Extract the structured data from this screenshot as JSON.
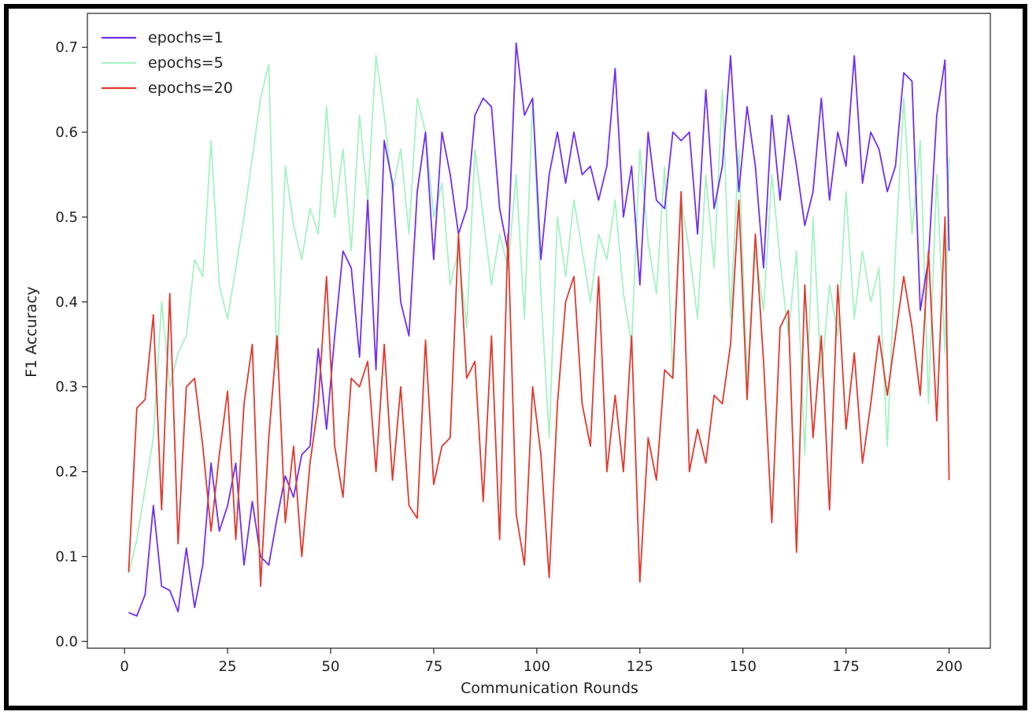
{
  "chart_data": {
    "type": "line",
    "title": "",
    "xlabel": "Communication Rounds",
    "ylabel": "F1 Accuracy",
    "xlim": [
      -9,
      210
    ],
    "ylim": [
      -0.008,
      0.74
    ],
    "xticks": [
      0,
      25,
      50,
      75,
      100,
      125,
      150,
      175,
      200
    ],
    "yticks": [
      0.0,
      0.1,
      0.2,
      0.3,
      0.4,
      0.5,
      0.6,
      0.7
    ],
    "xtick_labels": [
      "0",
      "25",
      "50",
      "75",
      "100",
      "125",
      "150",
      "175",
      "200"
    ],
    "ytick_labels": [
      "0.0",
      "0.1",
      "0.2",
      "0.3",
      "0.4",
      "0.5",
      "0.6",
      "0.7"
    ],
    "grid": false,
    "legend_position": "top-left",
    "series": [
      {
        "name": "epochs=5",
        "color": "#a6f2c4",
        "x": [
          1,
          3,
          5,
          7,
          9,
          11,
          13,
          15,
          17,
          19,
          21,
          23,
          25,
          27,
          29,
          31,
          33,
          35,
          37,
          39,
          41,
          43,
          45,
          47,
          49,
          51,
          53,
          55,
          57,
          59,
          61,
          63,
          65,
          67,
          69,
          71,
          73,
          75,
          77,
          79,
          81,
          83,
          85,
          87,
          89,
          91,
          93,
          95,
          97,
          99,
          101,
          103,
          105,
          107,
          109,
          111,
          113,
          115,
          117,
          119,
          121,
          123,
          125,
          127,
          129,
          131,
          133,
          135,
          137,
          139,
          141,
          143,
          145,
          147,
          149,
          151,
          153,
          155,
          157,
          159,
          161,
          163,
          165,
          167,
          169,
          171,
          173,
          175,
          177,
          179,
          181,
          183,
          185,
          187,
          189,
          191,
          193,
          195,
          197,
          199,
          200
        ],
        "y": [
          0.08,
          0.12,
          0.18,
          0.24,
          0.4,
          0.3,
          0.34,
          0.36,
          0.45,
          0.43,
          0.59,
          0.42,
          0.38,
          0.44,
          0.5,
          0.57,
          0.64,
          0.68,
          0.32,
          0.56,
          0.49,
          0.45,
          0.51,
          0.48,
          0.63,
          0.5,
          0.58,
          0.46,
          0.62,
          0.52,
          0.69,
          0.62,
          0.53,
          0.58,
          0.48,
          0.64,
          0.6,
          0.5,
          0.54,
          0.42,
          0.46,
          0.37,
          0.58,
          0.5,
          0.42,
          0.48,
          0.44,
          0.55,
          0.38,
          0.64,
          0.41,
          0.24,
          0.5,
          0.43,
          0.52,
          0.46,
          0.4,
          0.48,
          0.45,
          0.52,
          0.41,
          0.35,
          0.58,
          0.47,
          0.41,
          0.56,
          0.31,
          0.52,
          0.46,
          0.38,
          0.55,
          0.44,
          0.65,
          0.38,
          0.58,
          0.31,
          0.46,
          0.39,
          0.55,
          0.45,
          0.36,
          0.46,
          0.22,
          0.5,
          0.31,
          0.42,
          0.36,
          0.53,
          0.38,
          0.46,
          0.4,
          0.44,
          0.23,
          0.46,
          0.64,
          0.48,
          0.59,
          0.28,
          0.55,
          0.34,
          0.57
        ]
      },
      {
        "name": "epochs=1",
        "color": "#7030f0",
        "x": [
          1,
          3,
          5,
          7,
          9,
          11,
          13,
          15,
          17,
          19,
          21,
          23,
          25,
          27,
          29,
          31,
          33,
          35,
          37,
          39,
          41,
          43,
          45,
          47,
          49,
          51,
          53,
          55,
          57,
          59,
          61,
          63,
          65,
          67,
          69,
          71,
          73,
          75,
          77,
          79,
          81,
          83,
          85,
          87,
          89,
          91,
          93,
          95,
          97,
          99,
          101,
          103,
          105,
          107,
          109,
          111,
          113,
          115,
          117,
          119,
          121,
          123,
          125,
          127,
          129,
          131,
          133,
          135,
          137,
          139,
          141,
          143,
          145,
          147,
          149,
          151,
          153,
          155,
          157,
          159,
          161,
          163,
          165,
          167,
          169,
          171,
          173,
          175,
          177,
          179,
          181,
          183,
          185,
          187,
          189,
          191,
          193,
          195,
          197,
          199,
          200
        ],
        "y": [
          0.034,
          0.03,
          0.055,
          0.16,
          0.065,
          0.06,
          0.035,
          0.11,
          0.04,
          0.09,
          0.21,
          0.13,
          0.16,
          0.21,
          0.09,
          0.165,
          0.1,
          0.09,
          0.145,
          0.195,
          0.17,
          0.22,
          0.23,
          0.345,
          0.25,
          0.36,
          0.46,
          0.44,
          0.335,
          0.52,
          0.32,
          0.59,
          0.54,
          0.4,
          0.36,
          0.53,
          0.6,
          0.45,
          0.6,
          0.55,
          0.48,
          0.51,
          0.62,
          0.64,
          0.63,
          0.51,
          0.46,
          0.705,
          0.62,
          0.64,
          0.45,
          0.55,
          0.6,
          0.54,
          0.6,
          0.55,
          0.56,
          0.52,
          0.56,
          0.675,
          0.5,
          0.56,
          0.42,
          0.6,
          0.52,
          0.51,
          0.6,
          0.59,
          0.6,
          0.48,
          0.65,
          0.51,
          0.56,
          0.69,
          0.53,
          0.63,
          0.56,
          0.44,
          0.62,
          0.52,
          0.62,
          0.56,
          0.49,
          0.53,
          0.64,
          0.52,
          0.6,
          0.56,
          0.69,
          0.54,
          0.6,
          0.58,
          0.53,
          0.56,
          0.67,
          0.66,
          0.39,
          0.45,
          0.62,
          0.685,
          0.46
        ]
      },
      {
        "name": "epochs=20",
        "color": "#e03a30",
        "x": [
          1,
          3,
          5,
          7,
          9,
          11,
          13,
          15,
          17,
          19,
          21,
          23,
          25,
          27,
          29,
          31,
          33,
          35,
          37,
          39,
          41,
          43,
          45,
          47,
          49,
          51,
          53,
          55,
          57,
          59,
          61,
          63,
          65,
          67,
          69,
          71,
          73,
          75,
          77,
          79,
          81,
          83,
          85,
          87,
          89,
          91,
          93,
          95,
          97,
          99,
          101,
          103,
          105,
          107,
          109,
          111,
          113,
          115,
          117,
          119,
          121,
          123,
          125,
          127,
          129,
          131,
          133,
          135,
          137,
          139,
          141,
          143,
          145,
          147,
          149,
          151,
          153,
          155,
          157,
          159,
          161,
          163,
          165,
          167,
          169,
          171,
          173,
          175,
          177,
          179,
          181,
          183,
          185,
          187,
          189,
          191,
          193,
          195,
          197,
          199,
          200
        ],
        "y": [
          0.082,
          0.275,
          0.285,
          0.385,
          0.155,
          0.41,
          0.115,
          0.3,
          0.31,
          0.23,
          0.13,
          0.22,
          0.295,
          0.12,
          0.28,
          0.35,
          0.065,
          0.24,
          0.36,
          0.14,
          0.23,
          0.1,
          0.21,
          0.28,
          0.43,
          0.23,
          0.17,
          0.31,
          0.3,
          0.33,
          0.2,
          0.35,
          0.19,
          0.3,
          0.16,
          0.145,
          0.355,
          0.185,
          0.23,
          0.24,
          0.48,
          0.31,
          0.33,
          0.165,
          0.36,
          0.12,
          0.48,
          0.15,
          0.09,
          0.3,
          0.22,
          0.075,
          0.28,
          0.4,
          0.43,
          0.28,
          0.23,
          0.43,
          0.2,
          0.29,
          0.2,
          0.36,
          0.07,
          0.24,
          0.19,
          0.32,
          0.31,
          0.53,
          0.2,
          0.25,
          0.21,
          0.29,
          0.28,
          0.35,
          0.52,
          0.285,
          0.48,
          0.33,
          0.14,
          0.37,
          0.39,
          0.105,
          0.42,
          0.24,
          0.36,
          0.155,
          0.42,
          0.25,
          0.34,
          0.21,
          0.28,
          0.36,
          0.29,
          0.36,
          0.43,
          0.37,
          0.29,
          0.46,
          0.26,
          0.5,
          0.19
        ]
      }
    ],
    "legend_order": [
      "epochs=1",
      "epochs=5",
      "epochs=20"
    ]
  }
}
